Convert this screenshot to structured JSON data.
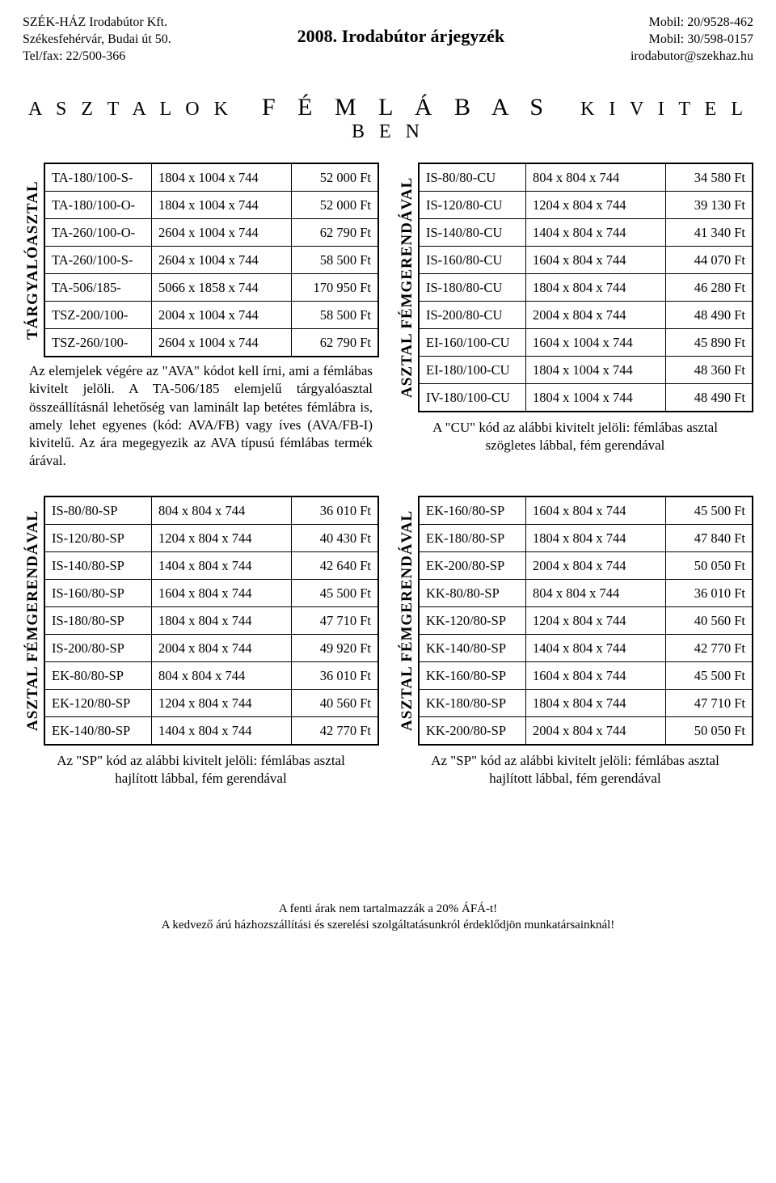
{
  "header": {
    "company": "SZÉK-HÁZ Irodabútor Kft.",
    "address": "Székesfehérvár, Budai út 50.",
    "telfax": "Tel/fax: 22/500-366",
    "title": "2008. Irodabútor árjegyzék",
    "mobil1": "Mobil: 20/9528-462",
    "mobil2": "Mobil: 30/598-0157",
    "email": "irodabutor@szekhaz.hu"
  },
  "main_title_left": "A S Z T A L O K",
  "main_title_mid": "F  É  M  L  Á  B  A  S",
  "main_title_right": "K I V I T E L B E N",
  "blocks": {
    "b1": {
      "vlabel": "TÁRGYALÓASZTAL",
      "rows": [
        [
          "TA-180/100-S-",
          "1804 x 1004 x 744",
          "52 000 Ft"
        ],
        [
          "TA-180/100-O-",
          "1804 x 1004 x 744",
          "52 000 Ft"
        ],
        [
          "TA-260/100-O-",
          "2604 x 1004 x 744",
          "62 790 Ft"
        ],
        [
          "TA-260/100-S-",
          "2604 x 1004 x 744",
          "58 500 Ft"
        ],
        [
          "TA-506/185-",
          "5066 x 1858 x 744",
          "170 950 Ft"
        ],
        [
          "TSZ-200/100-",
          "2004 x 1004 x 744",
          "58 500 Ft"
        ],
        [
          "TSZ-260/100-",
          "2604 x 1004 x 744",
          "62 790 Ft"
        ]
      ],
      "caption": "Az elemjelek végére az \"AVA\" kódot kell írni, ami a fémlábas kivitelt jelöli. A TA-506/185 elemjelű tárgyalóasztal összeállításnál lehetőség van laminált lap betétes fémlábra is, amely lehet egyenes (kód: AVA/FB) vagy íves (AVA/FB-I) kivitelű. Az ára megegyezik az AVA típusú fémlábas termék árával."
    },
    "b2": {
      "vlabel": "ASZTAL FÉMGERENDÁVAL",
      "rows": [
        [
          "IS-80/80-CU",
          "804 x 804 x 744",
          "34 580 Ft"
        ],
        [
          "IS-120/80-CU",
          "1204 x 804 x 744",
          "39 130 Ft"
        ],
        [
          "IS-140/80-CU",
          "1404 x 804 x 744",
          "41 340 Ft"
        ],
        [
          "IS-160/80-CU",
          "1604 x 804 x 744",
          "44 070 Ft"
        ],
        [
          "IS-180/80-CU",
          "1804 x 804 x 744",
          "46 280 Ft"
        ],
        [
          "IS-200/80-CU",
          "2004 x 804 x 744",
          "48 490 Ft"
        ],
        [
          "EI-160/100-CU",
          "1604 x 1004 x 744",
          "45 890 Ft"
        ],
        [
          "EI-180/100-CU",
          "1804 x 1004 x 744",
          "48 360 Ft"
        ],
        [
          "IV-180/100-CU",
          "1804 x 1004 x 744",
          "48 490 Ft"
        ]
      ],
      "caption": "A \"CU\" kód az alábbi kivitelt jelöli: fémlábas asztal szögletes lábbal, fém gerendával"
    },
    "b3": {
      "vlabel": "ASZTAL FÉMGERENDÁVAL",
      "rows": [
        [
          "IS-80/80-SP",
          "804 x 804 x 744",
          "36 010 Ft"
        ],
        [
          "IS-120/80-SP",
          "1204 x 804 x 744",
          "40 430 Ft"
        ],
        [
          "IS-140/80-SP",
          "1404 x 804 x 744",
          "42 640 Ft"
        ],
        [
          "IS-160/80-SP",
          "1604 x 804 x 744",
          "45 500 Ft"
        ],
        [
          "IS-180/80-SP",
          "1804 x 804 x 744",
          "47 710 Ft"
        ],
        [
          "IS-200/80-SP",
          "2004 x 804 x 744",
          "49 920 Ft"
        ],
        [
          "EK-80/80-SP",
          "804 x 804 x 744",
          "36 010 Ft"
        ],
        [
          "EK-120/80-SP",
          "1204 x 804 x 744",
          "40 560 Ft"
        ],
        [
          "EK-140/80-SP",
          "1404 x 804 x 744",
          "42 770 Ft"
        ]
      ],
      "caption": "Az \"SP\" kód az alábbi kivitelt jelöli: fémlábas asztal hajlított lábbal, fém gerendával"
    },
    "b4": {
      "vlabel": "ASZTAL FÉMGERENDÁVAL",
      "rows": [
        [
          "EK-160/80-SP",
          "1604 x 804 x 744",
          "45 500 Ft"
        ],
        [
          "EK-180/80-SP",
          "1804 x 804 x 744",
          "47 840 Ft"
        ],
        [
          "EK-200/80-SP",
          "2004 x 804 x 744",
          "50 050 Ft"
        ],
        [
          "KK-80/80-SP",
          "804 x 804 x 744",
          "36 010 Ft"
        ],
        [
          "KK-120/80-SP",
          "1204 x 804 x 744",
          "40 560 Ft"
        ],
        [
          "KK-140/80-SP",
          "1404 x 804 x 744",
          "42 770 Ft"
        ],
        [
          "KK-160/80-SP",
          "1604 x 804 x 744",
          "45 500 Ft"
        ],
        [
          "KK-180/80-SP",
          "1804 x 804 x 744",
          "47 710 Ft"
        ],
        [
          "KK-200/80-SP",
          "2004 x 804 x 744",
          "50 050 Ft"
        ]
      ],
      "caption": "Az \"SP\" kód az alábbi kivitelt jelöli: fémlábas asztal hajlított lábbal, fém gerendával"
    }
  },
  "footer": {
    "l1": "A fenti árak nem tartalmazzák a 20% ÁFÁ-t!",
    "l2": "A kedvező árú házhozszállítási és szerelési szolgáltatásunkról érdeklődjön munkatársainknál!"
  }
}
